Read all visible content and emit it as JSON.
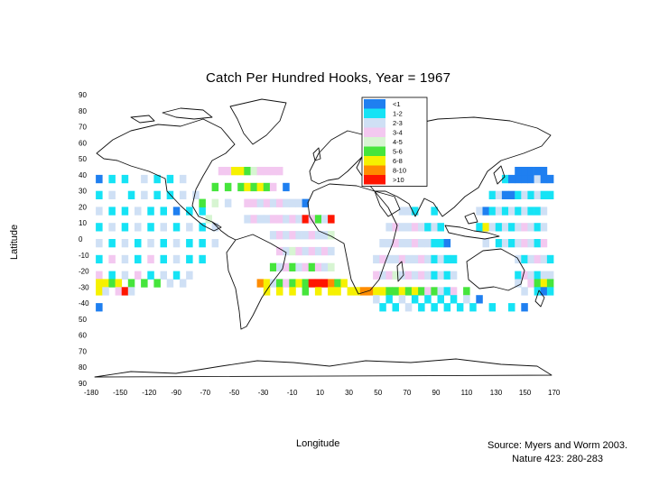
{
  "chart_data": {
    "type": "heatmap",
    "title": "Catch Per Hundred Hooks, Year = 1967",
    "xlabel": "Longitude",
    "ylabel": "Latitude",
    "xlim": [
      -180,
      180
    ],
    "ylim": [
      -90,
      90
    ],
    "x_ticks": [
      "-180",
      "-150",
      "-120",
      "-90",
      "-70",
      "-50",
      "-30",
      "-10",
      "10",
      "30",
      "50",
      "70",
      "90",
      "110",
      "130",
      "150",
      "170"
    ],
    "y_ticks": [
      "90",
      "80",
      "70",
      "60",
      "50",
      "40",
      "30",
      "20",
      "10",
      "0",
      "-10",
      "-20",
      "-30",
      "-40",
      "50",
      "60",
      "70",
      "80",
      "90"
    ],
    "legend": {
      "location": "top-right (over North Asia)",
      "classes": [
        {
          "label": "<1",
          "color": "#1f7ff0"
        },
        {
          "label": "1-2",
          "color": "#16e3f5"
        },
        {
          "label": "2-3",
          "color": "#cfe0f5"
        },
        {
          "label": "3-4",
          "color": "#f3c8f0"
        },
        {
          "label": "4-5",
          "color": "#d7f5d2"
        },
        {
          "label": "5-6",
          "color": "#46e53c"
        },
        {
          "label": "6-8",
          "color": "#f6f100"
        },
        {
          "label": "8-10",
          "color": "#ff8c00"
        },
        {
          "label": ">10",
          "color": "#ff1500"
        }
      ]
    },
    "cell_size_deg": 5,
    "cells_note": "Approximate class per 5-degree cell, read from the map (lon = west edge, lat = south edge, class index into legend.classes)",
    "cells": [
      [
        -175,
        35,
        0
      ],
      [
        -165,
        35,
        1
      ],
      [
        -155,
        35,
        1
      ],
      [
        -140,
        35,
        2
      ],
      [
        -130,
        35,
        1
      ],
      [
        -120,
        35,
        1
      ],
      [
        -110,
        35,
        2
      ],
      [
        -175,
        25,
        1
      ],
      [
        -165,
        25,
        2
      ],
      [
        -150,
        25,
        1
      ],
      [
        -140,
        25,
        2
      ],
      [
        -130,
        25,
        1
      ],
      [
        -120,
        25,
        1
      ],
      [
        -110,
        25,
        2
      ],
      [
        -100,
        25,
        2
      ],
      [
        -175,
        15,
        2
      ],
      [
        -165,
        15,
        1
      ],
      [
        -155,
        15,
        1
      ],
      [
        -145,
        15,
        2
      ],
      [
        -135,
        15,
        1
      ],
      [
        -125,
        15,
        1
      ],
      [
        -115,
        15,
        0
      ],
      [
        -105,
        15,
        1
      ],
      [
        -95,
        15,
        1
      ],
      [
        -175,
        5,
        1
      ],
      [
        -165,
        5,
        2
      ],
      [
        -155,
        5,
        1
      ],
      [
        -145,
        5,
        2
      ],
      [
        -135,
        5,
        1
      ],
      [
        -125,
        5,
        2
      ],
      [
        -115,
        5,
        1
      ],
      [
        -105,
        5,
        2
      ],
      [
        -95,
        5,
        1
      ],
      [
        -85,
        5,
        2
      ],
      [
        -175,
        -5,
        2
      ],
      [
        -165,
        -5,
        1
      ],
      [
        -155,
        -5,
        2
      ],
      [
        -145,
        -5,
        1
      ],
      [
        -135,
        -5,
        2
      ],
      [
        -125,
        -5,
        1
      ],
      [
        -115,
        -5,
        2
      ],
      [
        -105,
        -5,
        1
      ],
      [
        -95,
        -5,
        1
      ],
      [
        -85,
        -5,
        2
      ],
      [
        -175,
        -15,
        1
      ],
      [
        -165,
        -15,
        3
      ],
      [
        -155,
        -15,
        2
      ],
      [
        -145,
        -15,
        1
      ],
      [
        -135,
        -15,
        3
      ],
      [
        -125,
        -15,
        1
      ],
      [
        -115,
        -15,
        2
      ],
      [
        -105,
        -15,
        1
      ],
      [
        -95,
        -15,
        1
      ],
      [
        -175,
        -25,
        3
      ],
      [
        -165,
        -25,
        1
      ],
      [
        -155,
        -25,
        2
      ],
      [
        -145,
        -25,
        3
      ],
      [
        -135,
        -25,
        1
      ],
      [
        -125,
        -25,
        2
      ],
      [
        -115,
        -25,
        1
      ],
      [
        -105,
        -25,
        2
      ],
      [
        -175,
        -30,
        6
      ],
      [
        -170,
        -30,
        6
      ],
      [
        -165,
        -30,
        5
      ],
      [
        -160,
        -30,
        6
      ],
      [
        -150,
        -30,
        5
      ],
      [
        -140,
        -30,
        5
      ],
      [
        -130,
        -30,
        5
      ],
      [
        -120,
        -30,
        2
      ],
      [
        -110,
        -30,
        2
      ],
      [
        -175,
        -35,
        6
      ],
      [
        -170,
        -35,
        2
      ],
      [
        -160,
        -35,
        3
      ],
      [
        -155,
        -35,
        8
      ],
      [
        -150,
        -35,
        2
      ],
      [
        -175,
        -45,
        0
      ],
      [
        -80,
        40,
        3
      ],
      [
        -75,
        40,
        3
      ],
      [
        -70,
        40,
        6
      ],
      [
        -65,
        40,
        6
      ],
      [
        -60,
        40,
        5
      ],
      [
        -55,
        40,
        4
      ],
      [
        -50,
        40,
        3
      ],
      [
        -45,
        40,
        3
      ],
      [
        -40,
        40,
        3
      ],
      [
        -35,
        40,
        3
      ],
      [
        -85,
        30,
        5
      ],
      [
        -75,
        30,
        5
      ],
      [
        -65,
        30,
        5
      ],
      [
        -60,
        30,
        6
      ],
      [
        -55,
        30,
        5
      ],
      [
        -50,
        30,
        6
      ],
      [
        -45,
        30,
        5
      ],
      [
        -40,
        30,
        3
      ],
      [
        -30,
        30,
        0
      ],
      [
        -95,
        20,
        5
      ],
      [
        -85,
        20,
        4
      ],
      [
        -75,
        20,
        2
      ],
      [
        -60,
        20,
        3
      ],
      [
        -55,
        20,
        3
      ],
      [
        -50,
        20,
        2
      ],
      [
        -45,
        20,
        3
      ],
      [
        -40,
        20,
        2
      ],
      [
        -35,
        20,
        3
      ],
      [
        -30,
        20,
        2
      ],
      [
        -25,
        20,
        2
      ],
      [
        -20,
        20,
        2
      ],
      [
        -15,
        20,
        0
      ],
      [
        -90,
        10,
        4
      ],
      [
        -60,
        10,
        2
      ],
      [
        -55,
        10,
        3
      ],
      [
        -50,
        10,
        2
      ],
      [
        -45,
        10,
        2
      ],
      [
        -40,
        10,
        3
      ],
      [
        -35,
        10,
        3
      ],
      [
        -30,
        10,
        2
      ],
      [
        -25,
        10,
        3
      ],
      [
        -20,
        10,
        2
      ],
      [
        -15,
        10,
        8
      ],
      [
        -10,
        10,
        3
      ],
      [
        -5,
        10,
        5
      ],
      [
        0,
        10,
        2
      ],
      [
        5,
        10,
        8
      ],
      [
        -40,
        0,
        2
      ],
      [
        -35,
        0,
        3
      ],
      [
        -30,
        0,
        2
      ],
      [
        -25,
        0,
        3
      ],
      [
        -20,
        0,
        2
      ],
      [
        -15,
        0,
        2
      ],
      [
        -10,
        0,
        3
      ],
      [
        -5,
        0,
        2
      ],
      [
        0,
        0,
        2
      ],
      [
        5,
        0,
        4
      ],
      [
        -35,
        -10,
        3
      ],
      [
        -30,
        -10,
        2
      ],
      [
        -25,
        -10,
        4
      ],
      [
        -20,
        -10,
        3
      ],
      [
        -15,
        -10,
        2
      ],
      [
        -10,
        -10,
        3
      ],
      [
        -5,
        -10,
        2
      ],
      [
        0,
        -10,
        3
      ],
      [
        5,
        -10,
        2
      ],
      [
        -40,
        -20,
        5
      ],
      [
        -35,
        -20,
        2
      ],
      [
        -30,
        -20,
        3
      ],
      [
        -25,
        -20,
        5
      ],
      [
        -20,
        -20,
        2
      ],
      [
        -15,
        -20,
        3
      ],
      [
        -10,
        -20,
        5
      ],
      [
        -5,
        -20,
        3
      ],
      [
        0,
        -20,
        2
      ],
      [
        5,
        -20,
        4
      ],
      [
        -50,
        -30,
        7
      ],
      [
        -45,
        -30,
        6
      ],
      [
        -40,
        -30,
        2
      ],
      [
        -35,
        -30,
        5
      ],
      [
        -30,
        -30,
        3
      ],
      [
        -25,
        -30,
        5
      ],
      [
        -20,
        -30,
        6
      ],
      [
        -15,
        -30,
        5
      ],
      [
        -10,
        -30,
        8
      ],
      [
        -5,
        -30,
        8
      ],
      [
        0,
        -30,
        8
      ],
      [
        5,
        -30,
        7
      ],
      [
        10,
        -30,
        5
      ],
      [
        15,
        -30,
        6
      ],
      [
        -45,
        -35,
        6
      ],
      [
        -35,
        -35,
        6
      ],
      [
        -25,
        -35,
        6
      ],
      [
        -15,
        -35,
        5
      ],
      [
        -5,
        -35,
        6
      ],
      [
        5,
        -35,
        6
      ],
      [
        10,
        -35,
        6
      ],
      [
        20,
        -35,
        6
      ],
      [
        25,
        -35,
        6
      ],
      [
        30,
        -35,
        7
      ],
      [
        35,
        -35,
        7
      ],
      [
        40,
        -35,
        6
      ],
      [
        45,
        -35,
        6
      ],
      [
        50,
        -35,
        5
      ],
      [
        55,
        -35,
        5
      ],
      [
        60,
        -35,
        6
      ],
      [
        65,
        -35,
        5
      ],
      [
        70,
        -35,
        6
      ],
      [
        75,
        -35,
        5
      ],
      [
        80,
        -35,
        3
      ],
      [
        85,
        -35,
        5
      ],
      [
        90,
        -35,
        2
      ],
      [
        95,
        -35,
        1
      ],
      [
        100,
        -35,
        3
      ],
      [
        110,
        -35,
        5
      ],
      [
        40,
        -25,
        3
      ],
      [
        45,
        -25,
        2
      ],
      [
        50,
        -25,
        3
      ],
      [
        55,
        -25,
        4
      ],
      [
        60,
        -25,
        2
      ],
      [
        65,
        -25,
        3
      ],
      [
        70,
        -25,
        2
      ],
      [
        75,
        -25,
        3
      ],
      [
        80,
        -25,
        2
      ],
      [
        85,
        -25,
        1
      ],
      [
        90,
        -25,
        2
      ],
      [
        95,
        -25,
        1
      ],
      [
        100,
        -25,
        2
      ],
      [
        40,
        -15,
        2
      ],
      [
        45,
        -15,
        3
      ],
      [
        50,
        -15,
        2
      ],
      [
        55,
        -15,
        2
      ],
      [
        60,
        -15,
        3
      ],
      [
        65,
        -15,
        2
      ],
      [
        70,
        -15,
        2
      ],
      [
        75,
        -15,
        3
      ],
      [
        80,
        -15,
        2
      ],
      [
        85,
        -15,
        1
      ],
      [
        90,
        -15,
        2
      ],
      [
        95,
        -15,
        1
      ],
      [
        100,
        -15,
        1
      ],
      [
        45,
        -5,
        2
      ],
      [
        50,
        -5,
        2
      ],
      [
        55,
        -5,
        3
      ],
      [
        60,
        -5,
        2
      ],
      [
        65,
        -5,
        2
      ],
      [
        70,
        -5,
        3
      ],
      [
        75,
        -5,
        2
      ],
      [
        80,
        -5,
        2
      ],
      [
        85,
        -5,
        1
      ],
      [
        90,
        -5,
        1
      ],
      [
        95,
        -5,
        0
      ],
      [
        50,
        5,
        2
      ],
      [
        55,
        5,
        3
      ],
      [
        60,
        5,
        2
      ],
      [
        65,
        5,
        2
      ],
      [
        70,
        5,
        3
      ],
      [
        75,
        5,
        2
      ],
      [
        80,
        5,
        1
      ],
      [
        85,
        5,
        2
      ],
      [
        90,
        5,
        1
      ],
      [
        60,
        15,
        2
      ],
      [
        65,
        15,
        2
      ],
      [
        70,
        15,
        1
      ],
      [
        85,
        15,
        1
      ],
      [
        40,
        -40,
        2
      ],
      [
        50,
        -40,
        1
      ],
      [
        60,
        -40,
        2
      ],
      [
        70,
        -40,
        1
      ],
      [
        80,
        -40,
        1
      ],
      [
        90,
        -40,
        1
      ],
      [
        100,
        -40,
        1
      ],
      [
        110,
        -40,
        2
      ],
      [
        120,
        -40,
        0
      ],
      [
        45,
        -45,
        1
      ],
      [
        55,
        -45,
        1
      ],
      [
        65,
        -45,
        2
      ],
      [
        75,
        -45,
        1
      ],
      [
        85,
        -45,
        1
      ],
      [
        95,
        -45,
        1
      ],
      [
        105,
        -45,
        1
      ],
      [
        115,
        -45,
        1
      ],
      [
        130,
        -45,
        1
      ],
      [
        145,
        -45,
        1
      ],
      [
        155,
        -45,
        0
      ],
      [
        120,
        15,
        2
      ],
      [
        125,
        15,
        0
      ],
      [
        130,
        15,
        1
      ],
      [
        135,
        15,
        2
      ],
      [
        140,
        15,
        1
      ],
      [
        145,
        15,
        2
      ],
      [
        150,
        15,
        1
      ],
      [
        155,
        15,
        2
      ],
      [
        160,
        15,
        1
      ],
      [
        165,
        15,
        1
      ],
      [
        170,
        15,
        2
      ],
      [
        120,
        5,
        1
      ],
      [
        125,
        5,
        6
      ],
      [
        130,
        5,
        2
      ],
      [
        135,
        5,
        1
      ],
      [
        140,
        5,
        2
      ],
      [
        145,
        5,
        1
      ],
      [
        150,
        5,
        2
      ],
      [
        155,
        5,
        3
      ],
      [
        160,
        5,
        2
      ],
      [
        165,
        5,
        1
      ],
      [
        170,
        5,
        2
      ],
      [
        125,
        -5,
        2
      ],
      [
        135,
        -5,
        1
      ],
      [
        140,
        -5,
        2
      ],
      [
        145,
        -5,
        1
      ],
      [
        150,
        -5,
        2
      ],
      [
        155,
        -5,
        3
      ],
      [
        160,
        -5,
        2
      ],
      [
        165,
        -5,
        1
      ],
      [
        170,
        -5,
        3
      ],
      [
        150,
        -15,
        2
      ],
      [
        155,
        -15,
        1
      ],
      [
        160,
        -15,
        2
      ],
      [
        165,
        -15,
        3
      ],
      [
        170,
        -15,
        2
      ],
      [
        175,
        -15,
        1
      ],
      [
        150,
        -25,
        1
      ],
      [
        155,
        -25,
        3
      ],
      [
        160,
        -25,
        2
      ],
      [
        165,
        -25,
        1
      ],
      [
        170,
        -25,
        2
      ],
      [
        175,
        -25,
        2
      ],
      [
        150,
        -30,
        2
      ],
      [
        160,
        -30,
        3
      ],
      [
        165,
        -30,
        5
      ],
      [
        170,
        -30,
        6
      ],
      [
        175,
        -30,
        5
      ],
      [
        155,
        -35,
        2
      ],
      [
        165,
        -35,
        1
      ],
      [
        170,
        -35,
        0
      ],
      [
        175,
        -35,
        1
      ],
      [
        130,
        25,
        1
      ],
      [
        135,
        25,
        2
      ],
      [
        140,
        25,
        0
      ],
      [
        145,
        25,
        0
      ],
      [
        150,
        25,
        1
      ],
      [
        155,
        25,
        2
      ],
      [
        160,
        25,
        1
      ],
      [
        165,
        25,
        2
      ],
      [
        170,
        25,
        1
      ],
      [
        175,
        25,
        1
      ],
      [
        140,
        35,
        1
      ],
      [
        145,
        35,
        0
      ],
      [
        150,
        35,
        0
      ],
      [
        155,
        35,
        0
      ],
      [
        160,
        35,
        0
      ],
      [
        165,
        35,
        2
      ],
      [
        170,
        35,
        0
      ],
      [
        175,
        35,
        0
      ],
      [
        150,
        40,
        0
      ],
      [
        155,
        40,
        0
      ],
      [
        160,
        40,
        0
      ],
      [
        165,
        40,
        0
      ],
      [
        170,
        40,
        0
      ]
    ]
  },
  "source_note": {
    "line1": "Source: Myers and Worm 2003.",
    "line2": "Nature 423: 280-283"
  }
}
